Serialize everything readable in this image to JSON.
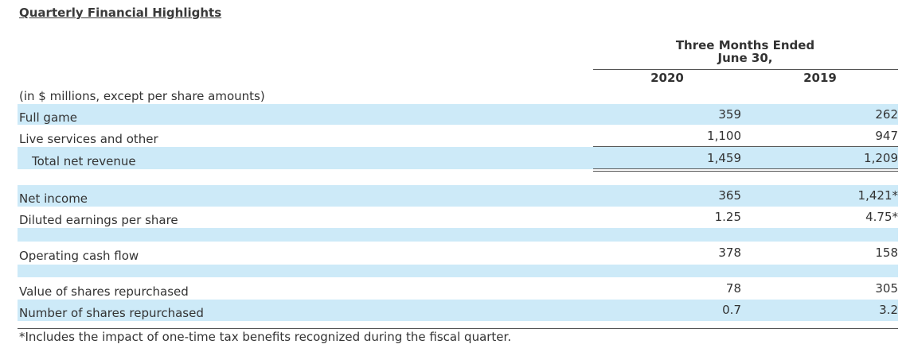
{
  "title": "Quarterly Financial Highlights",
  "group_header": [
    "Three Months Ended",
    "June 30,"
  ],
  "columns": [
    "2020",
    "2019"
  ],
  "unit_note": "(in $ millions, except per share amounts)",
  "rows": [
    [
      "Full game",
      "359",
      "262"
    ],
    [
      "Live services and other",
      "1,100",
      "947"
    ],
    [
      "Total net revenue",
      "1,459",
      "1,209"
    ],
    [
      "Net income",
      "365",
      "1,421*"
    ],
    [
      "Diluted earnings per share",
      "1.25",
      "4.75*"
    ],
    [
      "Operating cash flow",
      "378",
      "158"
    ],
    [
      "Value of shares repurchased",
      "78",
      "305"
    ],
    [
      "Number of shares repurchased",
      "0.7",
      "3.2"
    ]
  ],
  "footnote": "*Includes the impact of one-time tax benefits recognized during the fiscal quarter."
}
